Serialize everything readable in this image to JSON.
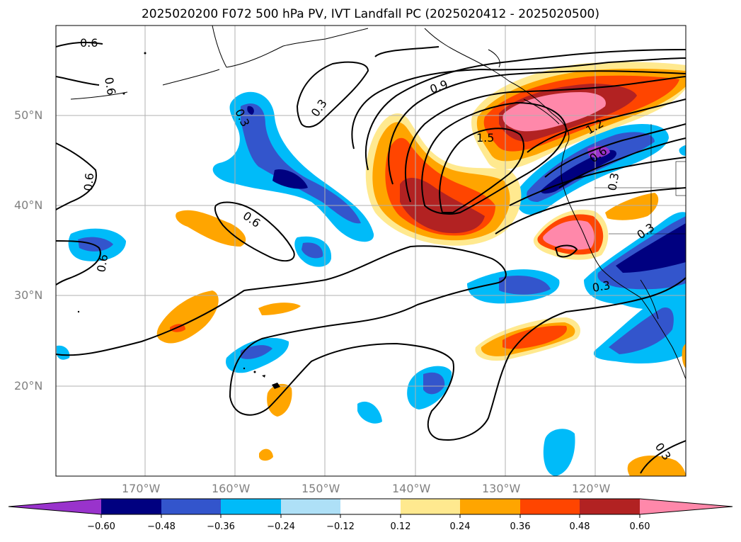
{
  "title": "2025020200 F072 500 hPa PV, IVT Landfall PC (2025020412 - 2025020500)",
  "map": {
    "lat_labels": [
      "50°N",
      "40°N",
      "30°N",
      "20°N"
    ],
    "lon_labels": [
      "170°W",
      "160°W",
      "150°W",
      "140°W",
      "130°W",
      "120°W"
    ],
    "contour_labels": [
      "0.6",
      "0.6",
      "0.6",
      "0.6",
      "0.6",
      "0.3",
      "0.3",
      "0.3",
      "0.3",
      "0.9",
      "1.5",
      "1.2",
      "0.6",
      "0.3",
      "0.3"
    ],
    "extent": {
      "lon_min": -180,
      "lon_max": -110,
      "lat_min": 10,
      "lat_max": 60
    },
    "colors": {
      "purple": "#9933cc",
      "navy": "#000080",
      "royal_blue": "#3355cc",
      "sky_blue": "#00bbf9",
      "light_blue": "#aee0f7",
      "light_yellow": "#ffe98f",
      "orange": "#ffa500",
      "red_orange": "#ff4500",
      "firebrick": "#b22222",
      "pink": "#ff88aa"
    }
  },
  "colorbar": {
    "tick_labels": [
      "−0.60",
      "−0.48",
      "−0.36",
      "−0.24",
      "−0.12",
      "0.12",
      "0.24",
      "0.36",
      "0.48",
      "0.60"
    ]
  }
}
